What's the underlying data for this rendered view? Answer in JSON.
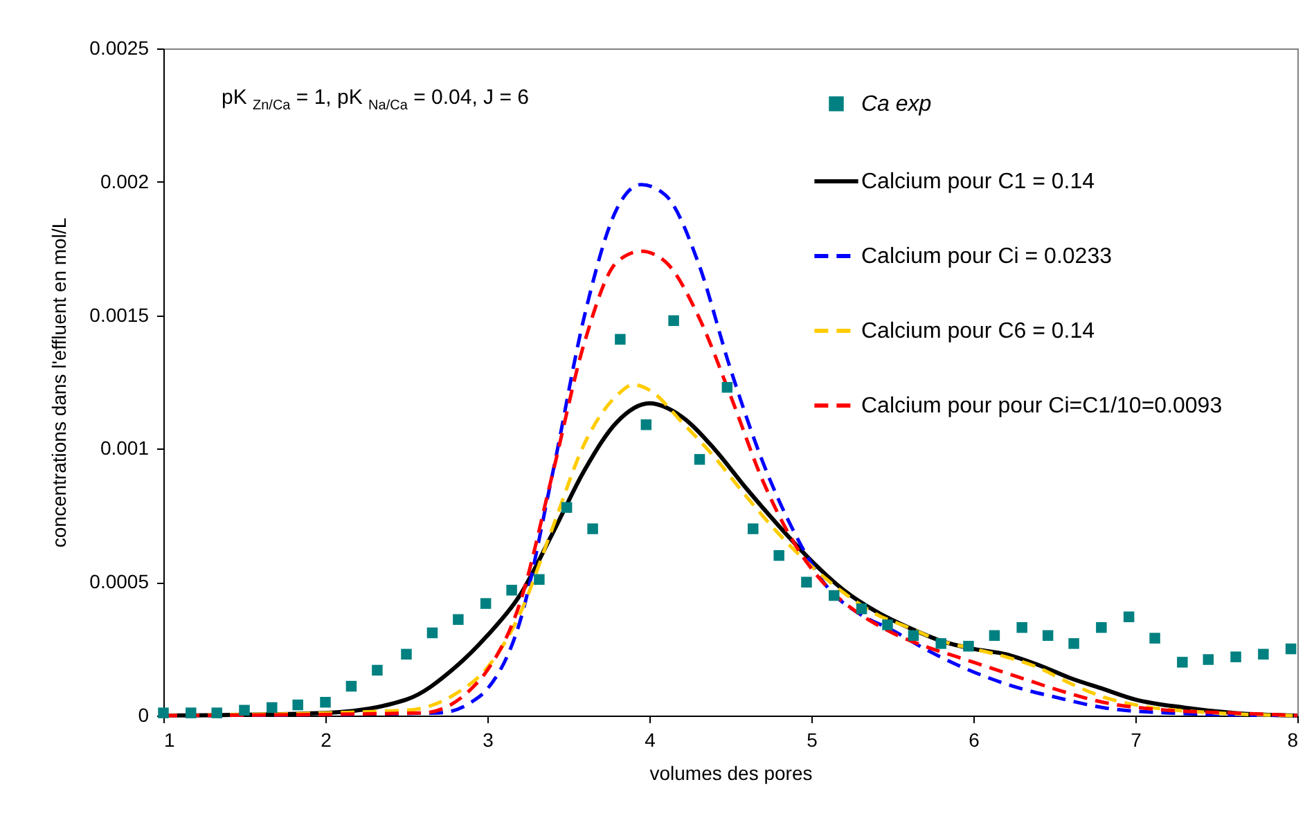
{
  "chart_data": {
    "type": "line",
    "xlabel": "volumes des pores",
    "ylabel": "concentrations dans l'effluent en mol/L",
    "annotations": [
      "pK $_{Zn/Ca}$ = 1, pK $_{Na/Ca}$ = 0.04, J = 6"
    ],
    "xlim": [
      1,
      8
    ],
    "xticks": [
      1,
      2,
      3,
      4,
      5,
      6,
      7,
      8
    ],
    "ylim": [
      0,
      0.0025
    ],
    "yticks": [
      0,
      0.0005,
      0.001,
      0.0015,
      0.002,
      0.0025
    ],
    "grid": false,
    "legend": "top right",
    "series": [
      {
        "name": "Ca exp",
        "type": "scatter",
        "marker": "square",
        "color": "#008080",
        "x": [
          1.0,
          1.17,
          1.33,
          1.5,
          1.67,
          1.83,
          2.0,
          2.16,
          2.32,
          2.5,
          2.66,
          2.82,
          2.99,
          3.15,
          3.32,
          3.49,
          3.65,
          3.82,
          3.98,
          4.15,
          4.31,
          4.48,
          4.64,
          4.8,
          4.97,
          5.14,
          5.31,
          5.47,
          5.63,
          5.8,
          5.97,
          6.13,
          6.3,
          6.46,
          6.62,
          6.79,
          6.96,
          7.12,
          7.29,
          7.45,
          7.62,
          7.79,
          7.96
        ],
        "values": [
          1e-05,
          1e-05,
          1e-05,
          2e-05,
          3e-05,
          4e-05,
          5e-05,
          0.00011,
          0.00017,
          0.00023,
          0.00031,
          0.00036,
          0.00042,
          0.00047,
          0.00051,
          0.00078,
          0.0007,
          0.00141,
          0.00109,
          0.00148,
          0.00096,
          0.00123,
          0.0007,
          0.0006,
          0.0005,
          0.00045,
          0.0004,
          0.00034,
          0.0003,
          0.00027,
          0.00026,
          0.0003,
          0.00033,
          0.0003,
          0.00027,
          0.00033,
          0.00037,
          0.00029,
          0.0002,
          0.00021,
          0.00022,
          0.00023,
          0.00025
        ]
      },
      {
        "name": "Calcium pour C1 = 0.14",
        "line_style": "solid",
        "color": "#000000",
        "x": [
          1,
          2,
          2.5,
          2.8,
          3.0,
          3.2,
          3.4,
          3.6,
          3.8,
          4.0,
          4.2,
          4.4,
          4.6,
          4.8,
          5.0,
          5.2,
          5.4,
          5.6,
          5.8,
          6.0,
          6.2,
          6.4,
          6.6,
          6.8,
          7.0,
          7.3,
          7.6,
          8
        ],
        "values": [
          0,
          1e-05,
          6e-05,
          0.00018,
          0.0003,
          0.00045,
          0.00068,
          0.00092,
          0.0011,
          0.00117,
          0.00112,
          0.001,
          0.00085,
          0.00071,
          0.00058,
          0.00047,
          0.00039,
          0.00033,
          0.00028,
          0.00025,
          0.00023,
          0.00019,
          0.00014,
          0.0001,
          6e-05,
          3e-05,
          1e-05,
          0
        ]
      },
      {
        "name": "Calcium pour Ci = 0.0233",
        "line_style": "dashed",
        "color": "#0000ff",
        "x": [
          1,
          2.7,
          2.9,
          3.0,
          3.2,
          3.4,
          3.6,
          3.8,
          3.95,
          4.1,
          4.3,
          4.5,
          4.7,
          4.9,
          5.1,
          5.3,
          5.5,
          5.7,
          5.9,
          6.1,
          6.3,
          6.5,
          6.8,
          7.2,
          8
        ],
        "values": [
          0,
          1e-05,
          5e-05,
          0.0001,
          0.00035,
          0.0009,
          0.0015,
          0.0019,
          0.00199,
          0.00195,
          0.0017,
          0.0013,
          0.00095,
          0.00068,
          0.00048,
          0.00038,
          0.00032,
          0.00025,
          0.00019,
          0.00014,
          0.0001,
          7e-05,
          3e-05,
          1e-05,
          0
        ]
      },
      {
        "name": "Calcium pour C6 = 0.14",
        "line_style": "dashed",
        "color": "#ffcc00",
        "x": [
          1,
          2.5,
          2.8,
          3.0,
          3.2,
          3.4,
          3.6,
          3.8,
          3.9,
          4.0,
          4.2,
          4.4,
          4.6,
          4.8,
          5.0,
          5.2,
          5.4,
          5.6,
          5.8,
          6.0,
          6.2,
          6.4,
          6.6,
          6.8,
          7.0,
          7.5,
          8
        ],
        "values": [
          0,
          2e-05,
          8e-05,
          0.00018,
          0.00038,
          0.0007,
          0.00102,
          0.0012,
          0.00124,
          0.00122,
          0.0011,
          0.00097,
          0.00082,
          0.00068,
          0.00056,
          0.00046,
          0.00038,
          0.00033,
          0.00028,
          0.00025,
          0.00022,
          0.00018,
          0.00012,
          7e-05,
          4e-05,
          1e-05,
          0
        ]
      },
      {
        "name": "Calcium pour pour Ci=C1/10=0.0093",
        "line_style": "dashed",
        "color": "#ff0000",
        "x": [
          1,
          2.6,
          2.9,
          3.0,
          3.2,
          3.4,
          3.6,
          3.8,
          3.95,
          4.1,
          4.3,
          4.5,
          4.7,
          4.9,
          5.1,
          5.3,
          5.5,
          5.7,
          5.9,
          6.1,
          6.3,
          6.5,
          6.8,
          7.2,
          7.6,
          8
        ],
        "values": [
          0,
          1e-05,
          0.0001,
          0.00017,
          0.00042,
          0.0009,
          0.0014,
          0.0017,
          0.00174,
          0.0017,
          0.0015,
          0.0012,
          0.00088,
          0.00064,
          0.00048,
          0.00038,
          0.00031,
          0.00026,
          0.00022,
          0.00018,
          0.00014,
          0.0001,
          5e-05,
          2e-05,
          1e-05,
          0
        ]
      }
    ]
  }
}
